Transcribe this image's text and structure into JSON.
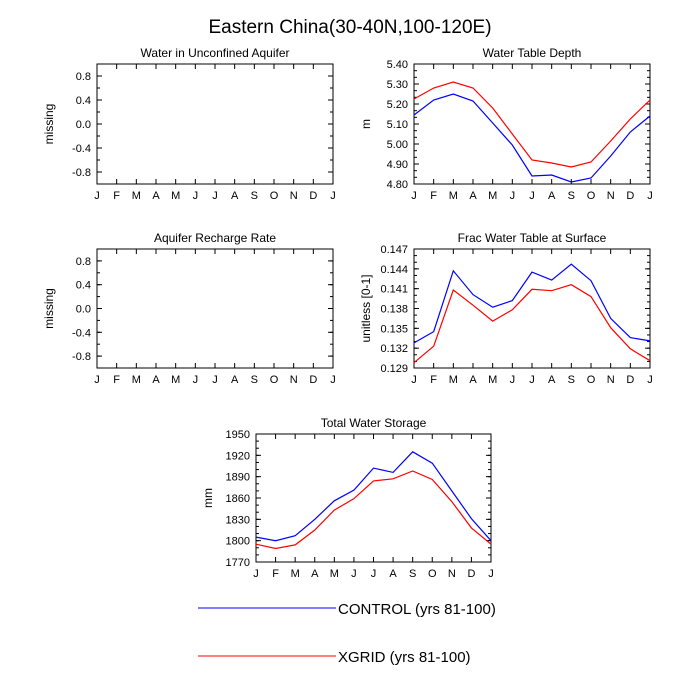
{
  "figure_title": "Eastern China(30-40N,100-120E)",
  "legend": [
    {
      "label": "CONTROL (yrs 81-100)",
      "color": "#0000ff"
    },
    {
      "label": "XGRID (yrs 81-100)",
      "color": "#ff0000"
    }
  ],
  "chart_data": [
    {
      "type": "line",
      "title": "Water in Unconfined Aquifer",
      "xlabel": "",
      "ylabel": "missing",
      "x": [
        "J",
        "F",
        "M",
        "A",
        "M",
        "J",
        "J",
        "A",
        "S",
        "O",
        "N",
        "D",
        "J"
      ],
      "yticks": [
        "0.8",
        "0.4",
        "0.0",
        "-0.4",
        "-0.8"
      ],
      "ylim": [
        -1.0,
        1.0
      ],
      "series": []
    },
    {
      "type": "line",
      "title": "Water Table Depth",
      "xlabel": "",
      "ylabel": "m",
      "x": [
        "J",
        "F",
        "M",
        "A",
        "M",
        "J",
        "J",
        "A",
        "S",
        "O",
        "N",
        "D",
        "J"
      ],
      "yticks": [
        "5.40",
        "5.30",
        "5.20",
        "5.10",
        "5.00",
        "4.90",
        "4.80"
      ],
      "ylim": [
        4.8,
        5.4
      ],
      "series": [
        {
          "name": "CONTROL (yrs 81-100)",
          "color": "#0000ff",
          "values": [
            5.145,
            5.22,
            5.25,
            5.215,
            5.105,
            4.995,
            4.84,
            4.845,
            4.81,
            4.83,
            4.94,
            5.06,
            5.14
          ]
        },
        {
          "name": "XGRID (yrs 81-100)",
          "color": "#ff0000",
          "values": [
            5.225,
            5.28,
            5.31,
            5.28,
            5.18,
            5.05,
            4.92,
            4.905,
            4.885,
            4.91,
            5.015,
            5.125,
            5.22
          ]
        }
      ]
    },
    {
      "type": "line",
      "title": "Aquifer Recharge Rate",
      "xlabel": "",
      "ylabel": "missing",
      "x": [
        "J",
        "F",
        "M",
        "A",
        "M",
        "J",
        "J",
        "A",
        "S",
        "O",
        "N",
        "D",
        "J"
      ],
      "yticks": [
        "0.8",
        "0.4",
        "0.0",
        "-0.4",
        "-0.8"
      ],
      "ylim": [
        -1.0,
        1.0
      ],
      "series": []
    },
    {
      "type": "line",
      "title": "Frac Water Table at Surface",
      "xlabel": "",
      "ylabel": "unitless [0-1]",
      "x": [
        "J",
        "F",
        "M",
        "A",
        "M",
        "J",
        "J",
        "A",
        "S",
        "O",
        "N",
        "D",
        "J"
      ],
      "yticks": [
        "0.147",
        "0.144",
        "0.141",
        "0.138",
        "0.135",
        "0.132",
        "0.129"
      ],
      "ylim": [
        0.129,
        0.147
      ],
      "series": [
        {
          "name": "CONTROL (yrs 81-100)",
          "color": "#0000ff",
          "values": [
            0.1328,
            0.1345,
            0.1437,
            0.1401,
            0.1382,
            0.1392,
            0.1435,
            0.1423,
            0.1447,
            0.1422,
            0.1365,
            0.1336,
            0.1331
          ]
        },
        {
          "name": "XGRID (yrs 81-100)",
          "color": "#ff0000",
          "values": [
            0.1298,
            0.1323,
            0.1408,
            0.1385,
            0.1361,
            0.1378,
            0.1409,
            0.1407,
            0.1416,
            0.1398,
            0.1351,
            0.1319,
            0.1301
          ]
        }
      ]
    },
    {
      "type": "line",
      "title": "Total Water Storage",
      "xlabel": "",
      "ylabel": "mm",
      "x": [
        "J",
        "F",
        "M",
        "A",
        "M",
        "J",
        "J",
        "A",
        "S",
        "O",
        "N",
        "D",
        "J"
      ],
      "yticks": [
        "1950",
        "1920",
        "1890",
        "1860",
        "1830",
        "1800",
        "1770"
      ],
      "ylim": [
        1770,
        1950
      ],
      "series": [
        {
          "name": "CONTROL (yrs 81-100)",
          "color": "#0000ff",
          "values": [
            1805,
            1800,
            1807,
            1830,
            1856,
            1871,
            1902,
            1896,
            1925,
            1909,
            1870,
            1831,
            1800
          ]
        },
        {
          "name": "XGRID (yrs 81-100)",
          "color": "#ff0000",
          "values": [
            1795,
            1789,
            1794,
            1815,
            1843,
            1859,
            1884,
            1887,
            1898,
            1886,
            1855,
            1818,
            1795
          ]
        }
      ]
    }
  ]
}
